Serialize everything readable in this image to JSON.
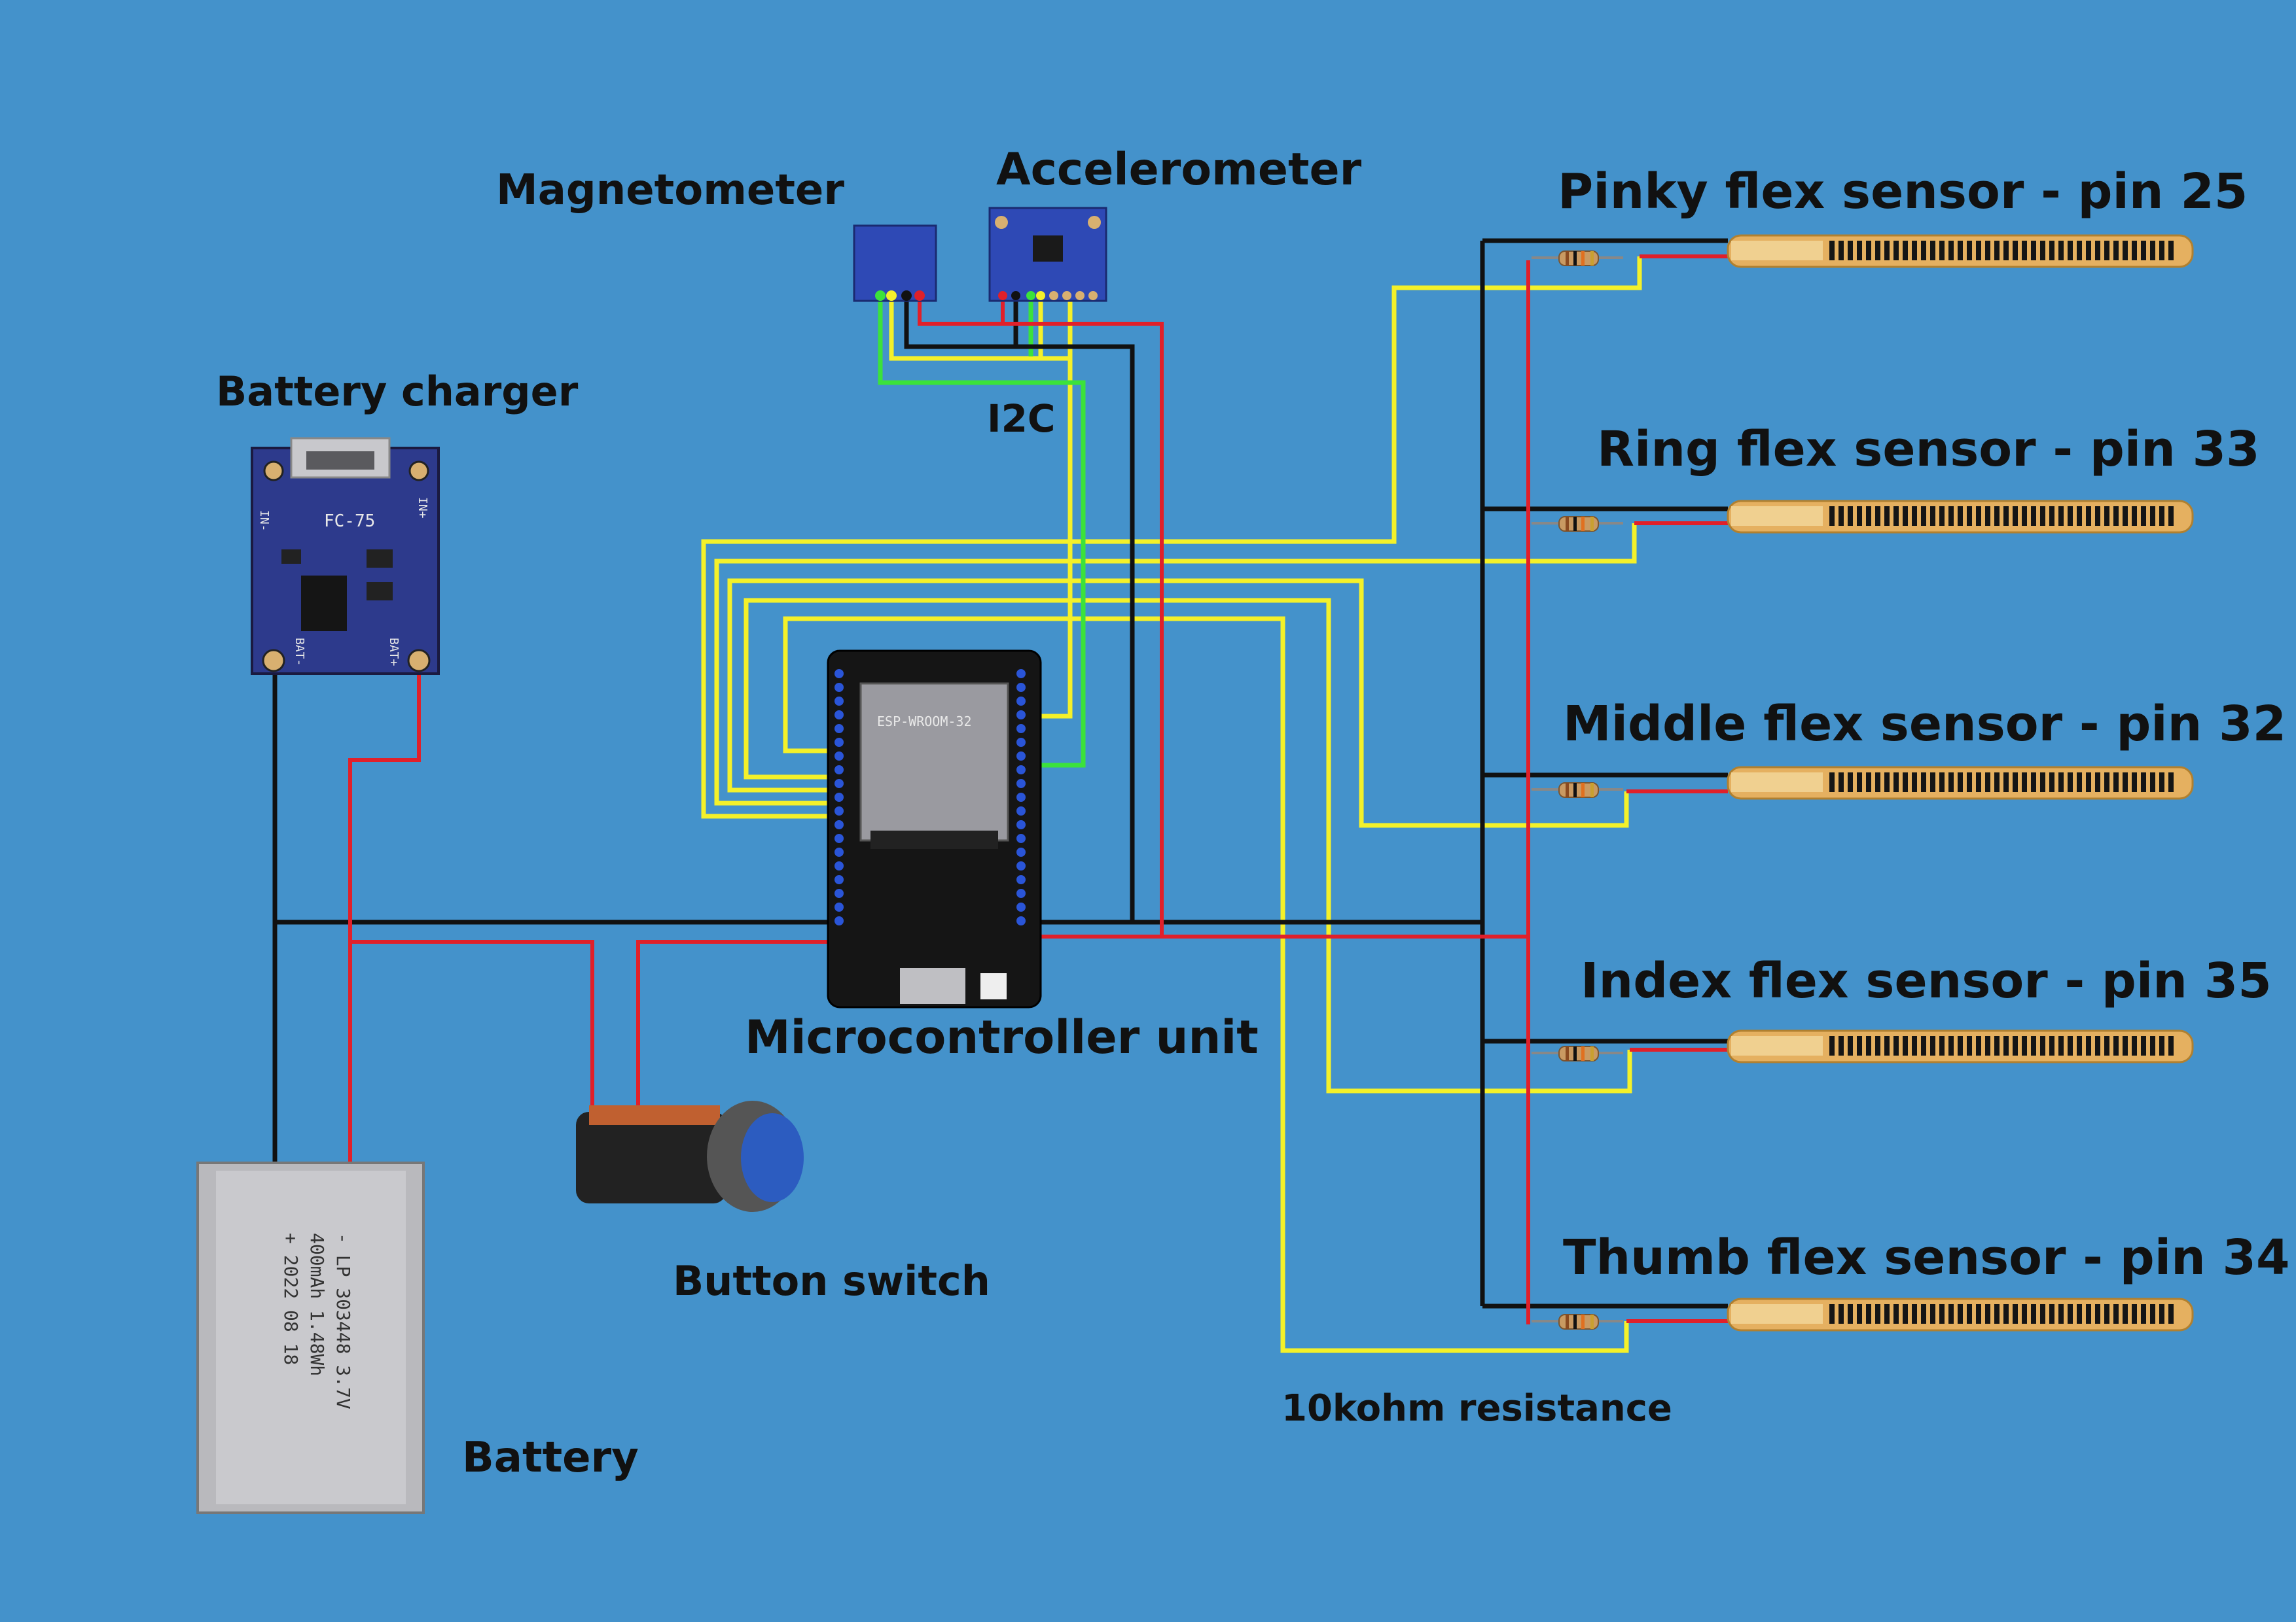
{
  "colors": {
    "background": "#4492cb",
    "wire_signal": "#f4f12a",
    "wire_i2c": "#3be23b",
    "wire_ground": "#111111",
    "wire_power": "#e0202a"
  },
  "labels": {
    "magnetometer": "Magnetometer",
    "accelerometer": "Accelerometer",
    "battery_charger": "Battery charger",
    "i2c": "I2C",
    "microcontroller": "Microcontroller unit",
    "button_switch": "Button switch",
    "battery": "Battery",
    "resistance": "10kohm resistance",
    "pinky": "Pinky flex sensor - pin 25",
    "ring": "Ring flex sensor - pin 33",
    "middle": "Middle flex sensor - pin 32",
    "index": "Index flex sensor - pin 35",
    "thumb": "Thumb flex sensor - pin 34"
  },
  "module_text": {
    "charger_model": "FC-75",
    "charger_in_minus": "IN-",
    "charger_in_plus": "IN+",
    "charger_bat_minus": "BAT-",
    "charger_bat_plus": "BAT+",
    "esp_module": "ESP-WROOM-32",
    "battery_line1": "- LP 303448 3.7V",
    "battery_line2": "400mAh 1.48Wh",
    "battery_line3": "+ 2022 08 18"
  },
  "icons": {
    "charger": "battery-charger-board",
    "magnetometer": "magnetometer-board",
    "accelerometer": "accelerometer-board",
    "mcu": "esp32-board",
    "button": "push-button",
    "battery": "lipo-battery",
    "flex_sensor": "flex-sensor-strip",
    "resistor": "resistor"
  }
}
